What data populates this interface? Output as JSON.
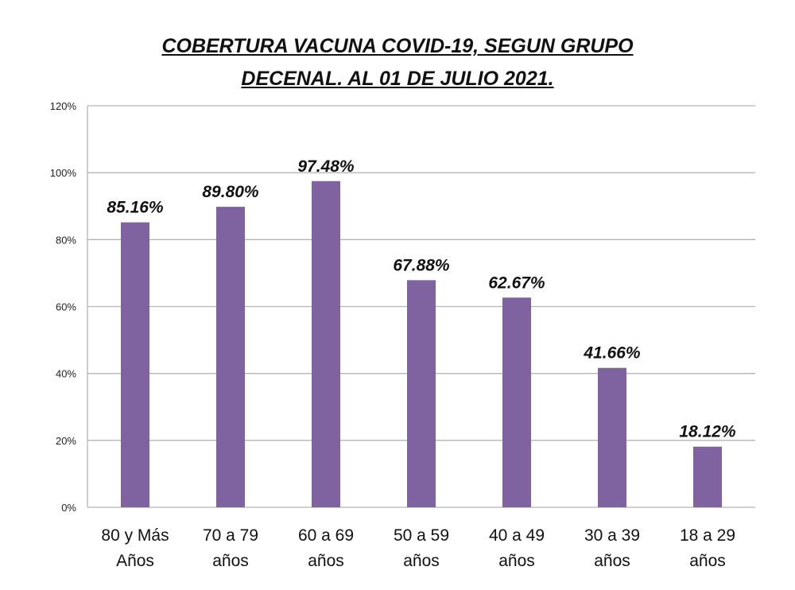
{
  "chart_data": {
    "type": "bar",
    "title_line1": "COBERTURA VACUNA COVID-19, SEGUN  GRUPO",
    "title_line2": "DECENAL. AL 01 DE JULIO 2021.",
    "categories": [
      [
        "80 y Más",
        "Años"
      ],
      [
        "70 a 79",
        "años"
      ],
      [
        "60 a 69",
        "años"
      ],
      [
        "50 a 59",
        "años"
      ],
      [
        "40 a 49",
        "años"
      ],
      [
        "30 a 39",
        "años"
      ],
      [
        "18 a 29",
        "años"
      ]
    ],
    "values": [
      85.16,
      89.8,
      97.48,
      67.88,
      62.67,
      41.66,
      18.12
    ],
    "data_labels": [
      "85.16%",
      "89.80%",
      "97.48%",
      "67.88%",
      "62.67%",
      "41.66%",
      "18.12%"
    ],
    "yticks": [
      "0%",
      "20%",
      "40%",
      "60%",
      "80%",
      "100%",
      "120%"
    ],
    "ylim": [
      0,
      120
    ],
    "grid": true,
    "bar_color": "#7F62A0"
  }
}
